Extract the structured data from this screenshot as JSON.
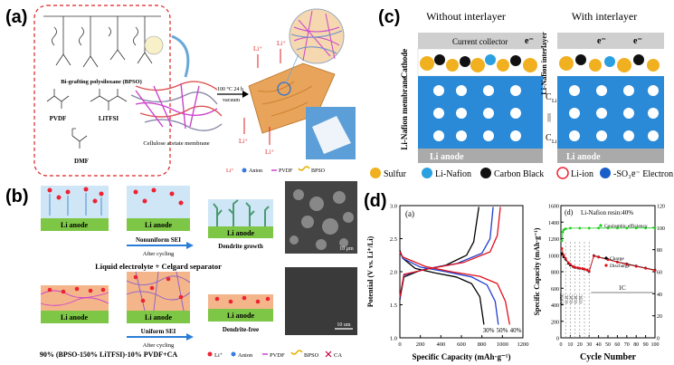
{
  "panels": {
    "a": {
      "label": "(a)",
      "bpso_label": "Bi-grafting polysiloxane (BPSO)",
      "pvdf": "PVDF",
      "litfsi": "LiTFSI",
      "dmf": "DMF",
      "conditions_top": "100 °C 24 h",
      "conditions_bottom": "vacuum",
      "membrane": "Cellulose acetate membrane",
      "li": "Li⁺",
      "legend": [
        "Li⁺",
        "Anion",
        "PVDF",
        "BPSO"
      ]
    },
    "b": {
      "label": "(b)",
      "li_anode": "Li anode",
      "nonuniform": "Nonuniform SEI",
      "uniform": "Uniform SEI",
      "after_cycling": "After cycling",
      "dendrite_growth": "Dendrite growth",
      "dendrite_free": "Dendrite-free",
      "caption_top": "Liquid electrolyte + Celgard separator",
      "caption_bottom": "90% (BPSO-150% LiTFSI)-10% PVDF+CA",
      "scale_top": "10 μm",
      "scale_bottom": "10 um",
      "legend": [
        "Li⁺",
        "Anion",
        "PVDF",
        "BPSO",
        "CA"
      ]
    },
    "c": {
      "label": "(c)",
      "without": "Without interlayer",
      "with": "With interlayer",
      "current_collector": "Current collector",
      "cathode": "Cathode",
      "membrane": "Li-Nafion membrane",
      "interlayer": "Li-Nafion interlayer",
      "li_anode": "Li anode",
      "cli_top": "C",
      "cli_sub": "Li",
      "equals": "||",
      "electron": "e⁻",
      "legend": [
        "Sulfur",
        "Li-Nafion",
        "Carbon Black",
        "Li-ion",
        "-SO₃⁻",
        "e⁻ Electron"
      ]
    },
    "d": {
      "label": "(d)",
      "left_panel_tag": "(a)",
      "right_panel_tag": "(d)",
      "right_title": "Li-Nafion resin:40%",
      "legend_ce": "Coulombic efficiency",
      "legend_charge": "Charge",
      "legend_discharge": "Discharge",
      "rate_1c": "1C",
      "rate_labels": [
        "0.05C",
        "0.1C",
        "0.2C",
        "0.3C",
        "0.5C"
      ],
      "curve_labels": [
        "30%",
        "50%",
        "40%"
      ]
    }
  },
  "chart_data": [
    {
      "type": "line",
      "title": "",
      "xlabel": "Specific Capacity (mAh·g⁻¹)",
      "ylabel": "Potential (V vs. Li⁺/Li)",
      "xlim": [
        0,
        1200
      ],
      "ylim": [
        1.0,
        3.0
      ],
      "xticks": [
        0,
        200,
        400,
        600,
        800,
        1000,
        1200
      ],
      "yticks": [
        1.0,
        1.5,
        2.0,
        2.5,
        3.0
      ],
      "series": [
        {
          "name": "30%",
          "color": "#000000",
          "discharge": [
            [
              0,
              2.32
            ],
            [
              30,
              2.2
            ],
            [
              150,
              2.05
            ],
            [
              350,
              1.98
            ],
            [
              550,
              1.92
            ],
            [
              700,
              1.82
            ],
            [
              780,
              1.62
            ],
            [
              820,
              1.2
            ]
          ],
          "charge": [
            [
              0,
              1.58
            ],
            [
              40,
              1.92
            ],
            [
              200,
              2.02
            ],
            [
              450,
              2.1
            ],
            [
              650,
              2.25
            ],
            [
              720,
              2.45
            ],
            [
              770,
              2.98
            ]
          ]
        },
        {
          "name": "50%",
          "color": "#1f3fd0",
          "discharge": [
            [
              0,
              2.3
            ],
            [
              30,
              2.2
            ],
            [
              200,
              2.07
            ],
            [
              450,
              2.0
            ],
            [
              700,
              1.92
            ],
            [
              850,
              1.8
            ],
            [
              930,
              1.55
            ],
            [
              960,
              1.2
            ]
          ],
          "charge": [
            [
              0,
              1.6
            ],
            [
              40,
              1.95
            ],
            [
              250,
              2.04
            ],
            [
              550,
              2.12
            ],
            [
              800,
              2.28
            ],
            [
              880,
              2.5
            ],
            [
              910,
              2.98
            ]
          ]
        },
        {
          "name": "40%",
          "color": "#e0101a",
          "discharge": [
            [
              0,
              2.3
            ],
            [
              30,
              2.22
            ],
            [
              250,
              2.08
            ],
            [
              500,
              2.0
            ],
            [
              780,
              1.93
            ],
            [
              950,
              1.82
            ],
            [
              1030,
              1.55
            ],
            [
              1070,
              1.2
            ]
          ],
          "charge": [
            [
              0,
              1.62
            ],
            [
              40,
              1.96
            ],
            [
              300,
              2.05
            ],
            [
              620,
              2.14
            ],
            [
              880,
              2.3
            ],
            [
              950,
              2.55
            ],
            [
              980,
              2.98
            ]
          ]
        }
      ],
      "annotations": [
        "30%",
        "50%",
        "40%"
      ]
    },
    {
      "type": "scatter",
      "title": "Li-Nafion resin:40%",
      "xlabel": "Cycle Number",
      "ylabel": "Specific Capacity (mAh·g⁻¹)",
      "y2label": "Coulombic efficiency (%)",
      "xlim": [
        0,
        100
      ],
      "ylim": [
        0,
        1600
      ],
      "y2lim": [
        0,
        120
      ],
      "xticks": [
        0,
        10,
        20,
        30,
        40,
        50,
        60,
        70,
        80,
        90,
        100
      ],
      "yticks": [
        0,
        200,
        400,
        600,
        800,
        1000,
        1200,
        1400,
        1600
      ],
      "y2ticks": [
        0,
        20,
        40,
        60,
        80,
        100,
        120
      ],
      "series": [
        {
          "name": "Coulombic efficiency",
          "axis": "right",
          "color": "#22cc22",
          "points": [
            [
              1,
              88
            ],
            [
              2,
              96
            ],
            [
              3,
              98
            ],
            [
              5,
              99
            ],
            [
              10,
              99.5
            ],
            [
              20,
              99.5
            ],
            [
              30,
              99.5
            ],
            [
              40,
              99.6
            ],
            [
              50,
              99.6
            ],
            [
              60,
              99.6
            ],
            [
              70,
              99.6
            ],
            [
              80,
              99.7
            ],
            [
              90,
              99.7
            ],
            [
              100,
              99.7
            ]
          ]
        },
        {
          "name": "Charge",
          "axis": "left",
          "color": "#000000",
          "points": [
            [
              1,
              1020
            ],
            [
              3,
              980
            ],
            [
              5,
              950
            ],
            [
              8,
              900
            ],
            [
              10,
              880
            ],
            [
              13,
              860
            ],
            [
              15,
              850
            ],
            [
              18,
              845
            ],
            [
              20,
              840
            ],
            [
              23,
              835
            ],
            [
              25,
              830
            ],
            [
              28,
              820
            ],
            [
              30,
              800
            ],
            [
              35,
              995
            ],
            [
              40,
              980
            ],
            [
              50,
              950
            ],
            [
              60,
              920
            ],
            [
              70,
              895
            ],
            [
              80,
              870
            ],
            [
              90,
              845
            ],
            [
              100,
              820
            ]
          ]
        },
        {
          "name": "Discharge",
          "axis": "left",
          "color": "#e0101a",
          "points": [
            [
              1,
              1080
            ],
            [
              3,
              1000
            ],
            [
              5,
              960
            ],
            [
              8,
              910
            ],
            [
              10,
              890
            ],
            [
              13,
              865
            ],
            [
              15,
              855
            ],
            [
              18,
              848
            ],
            [
              20,
              842
            ],
            [
              23,
              838
            ],
            [
              25,
              832
            ],
            [
              28,
              822
            ],
            [
              30,
              805
            ],
            [
              35,
              990
            ],
            [
              40,
              975
            ],
            [
              50,
              945
            ],
            [
              60,
              915
            ],
            [
              70,
              890
            ],
            [
              80,
              865
            ],
            [
              90,
              840
            ],
            [
              100,
              815
            ]
          ]
        }
      ],
      "rate_labels": [
        "0.05C",
        "0.1C",
        "0.2C",
        "0.3C",
        "0.5C",
        "1C"
      ]
    }
  ]
}
